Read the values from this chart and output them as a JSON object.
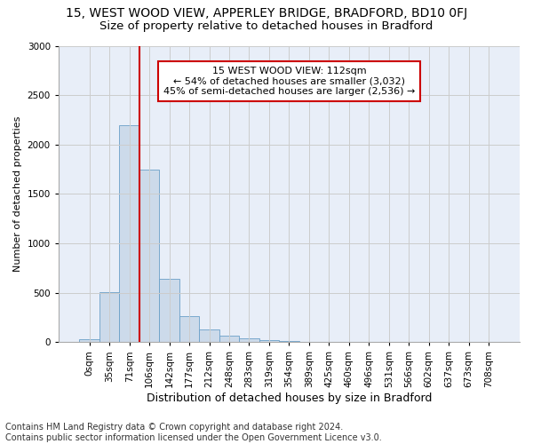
{
  "title_line1": "15, WEST WOOD VIEW, APPERLEY BRIDGE, BRADFORD, BD10 0FJ",
  "title_line2": "Size of property relative to detached houses in Bradford",
  "xlabel": "Distribution of detached houses by size in Bradford",
  "ylabel": "Number of detached properties",
  "categories": [
    "0sqm",
    "35sqm",
    "71sqm",
    "106sqm",
    "142sqm",
    "177sqm",
    "212sqm",
    "248sqm",
    "283sqm",
    "319sqm",
    "354sqm",
    "389sqm",
    "425sqm",
    "460sqm",
    "496sqm",
    "531sqm",
    "566sqm",
    "602sqm",
    "637sqm",
    "673sqm",
    "708sqm"
  ],
  "values": [
    30,
    510,
    2200,
    1750,
    640,
    260,
    130,
    65,
    35,
    18,
    10,
    5,
    2,
    1,
    1,
    0,
    0,
    0,
    0,
    0,
    0
  ],
  "bar_color": "#ccdaea",
  "bar_edge_color": "#6aa0c8",
  "vline_x": 2.5,
  "vline_color": "#cc0000",
  "annotation_text": "15 WEST WOOD VIEW: 112sqm\n← 54% of detached houses are smaller (3,032)\n45% of semi-detached houses are larger (2,536) →",
  "annotation_box_color": "#ffffff",
  "annotation_box_edge": "#cc0000",
  "ylim": [
    0,
    3000
  ],
  "yticks": [
    0,
    500,
    1000,
    1500,
    2000,
    2500,
    3000
  ],
  "grid_color": "#cccccc",
  "bg_color": "#e8eef8",
  "footer_line1": "Contains HM Land Registry data © Crown copyright and database right 2024.",
  "footer_line2": "Contains public sector information licensed under the Open Government Licence v3.0.",
  "title1_fontsize": 10,
  "title2_fontsize": 9.5,
  "xlabel_fontsize": 9,
  "ylabel_fontsize": 8,
  "tick_fontsize": 7.5,
  "annot_fontsize": 8,
  "footer_fontsize": 7
}
